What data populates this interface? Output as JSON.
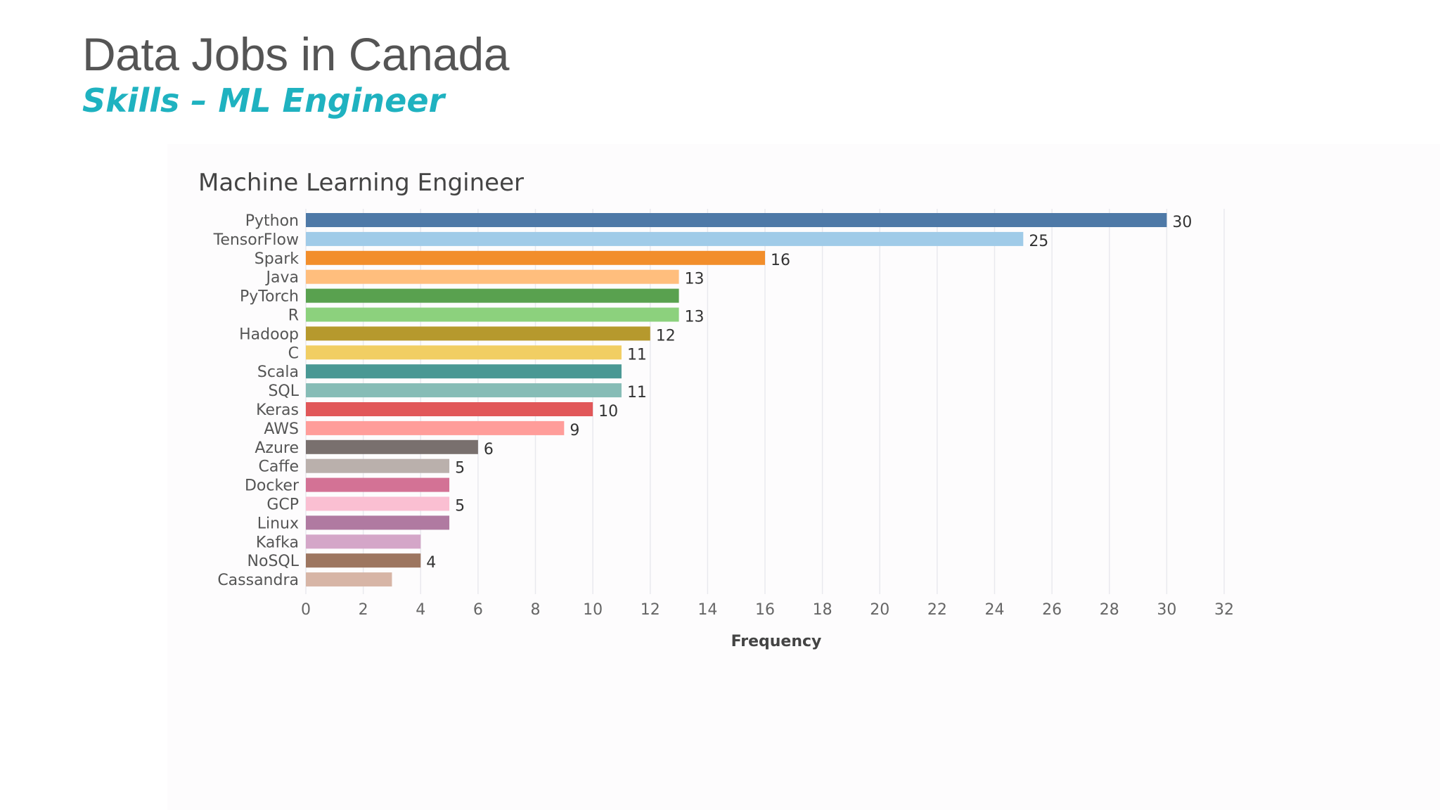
{
  "slide": {
    "title": "Data Jobs in Canada",
    "subtitle": "Skills – ML Engineer"
  },
  "colors": {
    "title": "#555555",
    "subtitle": "#1fb2c0"
  },
  "chart_data": {
    "type": "bar",
    "orientation": "horizontal",
    "title": "Machine Learning Engineer",
    "xlabel": "Frequency",
    "ylabel": "",
    "xlim": [
      0,
      32
    ],
    "xticks": [
      0,
      2,
      4,
      6,
      8,
      10,
      12,
      14,
      16,
      18,
      20,
      22,
      24,
      26,
      28,
      30,
      32
    ],
    "grid": true,
    "categories": [
      "Python",
      "TensorFlow",
      "Spark",
      "Java",
      "PyTorch",
      "R",
      "Hadoop",
      "C",
      "Scala",
      "SQL",
      "Keras",
      "AWS",
      "Azure",
      "Caffe",
      "Docker",
      "GCP",
      "Linux",
      "Kafka",
      "NoSQL",
      "Cassandra"
    ],
    "values": [
      30,
      25,
      16,
      13,
      13,
      13,
      12,
      11,
      11,
      11,
      10,
      9,
      6,
      5,
      5,
      5,
      5,
      4,
      4,
      3
    ],
    "value_labels": [
      "30",
      "25",
      "16",
      "13",
      "",
      "13",
      "12",
      "11",
      "",
      "11",
      "10",
      "9",
      "6",
      "5",
      "",
      "5",
      "",
      "",
      "4",
      ""
    ],
    "bar_colors": [
      "#4e79a7",
      "#a0cbe8",
      "#f28e2b",
      "#ffbe7d",
      "#59a14f",
      "#8cd17d",
      "#b6992d",
      "#f1ce63",
      "#499894",
      "#86bcb6",
      "#e15759",
      "#ff9d9a",
      "#79706e",
      "#bab0ac",
      "#d37295",
      "#fabfd2",
      "#b07aa1",
      "#d4a6c8",
      "#9d7660",
      "#d7b5a6"
    ]
  }
}
